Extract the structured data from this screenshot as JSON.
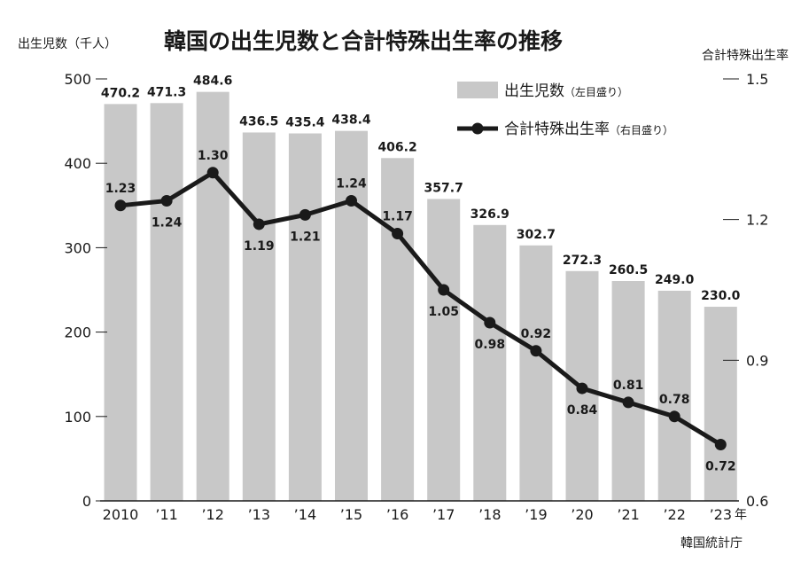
{
  "chart_data": {
    "type": "bar+line",
    "title": "韓国の出生児数と合計特殊出生率の推移",
    "left_axis_label": "出生児数（千人）",
    "right_axis_label": "合計特殊出生率",
    "x_unit": "年",
    "source": "韓国統計庁",
    "categories": [
      "2010",
      "’11",
      "’12",
      "’13",
      "’14",
      "’15",
      "’16",
      "’17",
      "’18",
      "’19",
      "’20",
      "’21",
      "’22",
      "’23"
    ],
    "left_ylim": [
      0,
      500
    ],
    "left_ticks": [
      "0",
      "100",
      "200",
      "300",
      "400",
      "500"
    ],
    "right_ylim": [
      0.6,
      1.5
    ],
    "right_ticks": [
      "0.6",
      "0.9",
      "1.2",
      "1.5"
    ],
    "series": [
      {
        "name": "出生児数",
        "name_note": "（左目盛り）",
        "type": "bar",
        "axis": "left",
        "color": "#c8c8c8",
        "values": [
          470.2,
          471.3,
          484.6,
          436.5,
          435.4,
          438.4,
          406.2,
          357.7,
          326.9,
          302.7,
          272.3,
          260.5,
          249.0,
          230.0
        ],
        "labels": [
          "470.2",
          "471.3",
          "484.6",
          "436.5",
          "435.4",
          "438.4",
          "406.2",
          "357.7",
          "326.9",
          "302.7",
          "272.3",
          "260.5",
          "249.0",
          "230.0"
        ]
      },
      {
        "name": "合計特殊出生率",
        "name_note": "（右目盛り）",
        "type": "line",
        "axis": "right",
        "color": "#1a1a1a",
        "values": [
          1.23,
          1.24,
          1.3,
          1.19,
          1.21,
          1.24,
          1.17,
          1.05,
          0.98,
          0.92,
          0.84,
          0.81,
          0.78,
          0.72
        ],
        "labels": [
          "1.23",
          "1.24",
          "1.30",
          "1.19",
          "1.21",
          "1.24",
          "1.17",
          "1.05",
          "0.98",
          "0.92",
          "0.84",
          "0.81",
          "0.78",
          "0.72"
        ]
      }
    ]
  }
}
